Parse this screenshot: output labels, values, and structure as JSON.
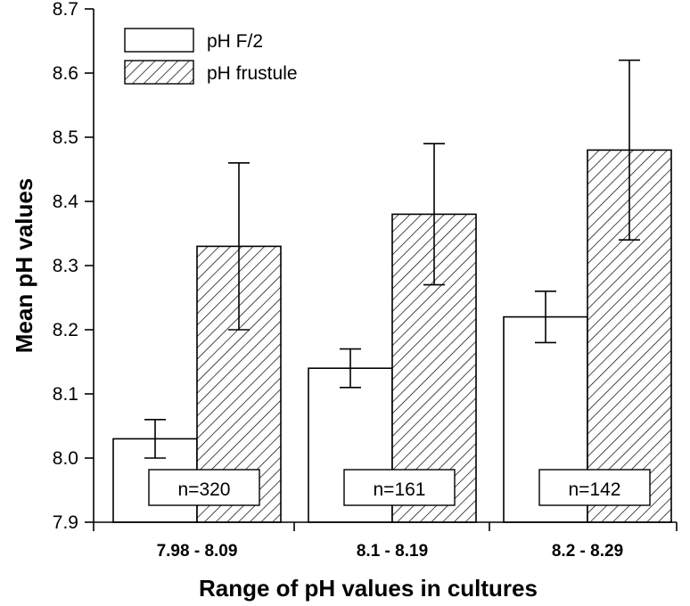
{
  "chart_data": {
    "type": "bar",
    "xlabel": "Range of pH values in cultures",
    "ylabel": "Mean pH values",
    "ylim": [
      7.9,
      8.7
    ],
    "yticks": [
      "7.9",
      "8.0",
      "8.1",
      "8.2",
      "8.3",
      "8.4",
      "8.5",
      "8.6",
      "8.7"
    ],
    "categories": [
      "7.98 - 8.09",
      "8.1 - 8.19",
      "8.2 - 8.29"
    ],
    "series": [
      {
        "name": "pH F/2",
        "fill": "white",
        "values": [
          8.03,
          8.14,
          8.22
        ],
        "errors": [
          0.03,
          0.03,
          0.04
        ]
      },
      {
        "name": "pH frustule",
        "fill": "hatched",
        "values": [
          8.33,
          8.38,
          8.48
        ],
        "errors": [
          0.13,
          0.11,
          0.14
        ]
      }
    ],
    "annotations": [
      "n=320",
      "n=161",
      "n=142"
    ],
    "legend_position": "top-left",
    "grid": false
  }
}
